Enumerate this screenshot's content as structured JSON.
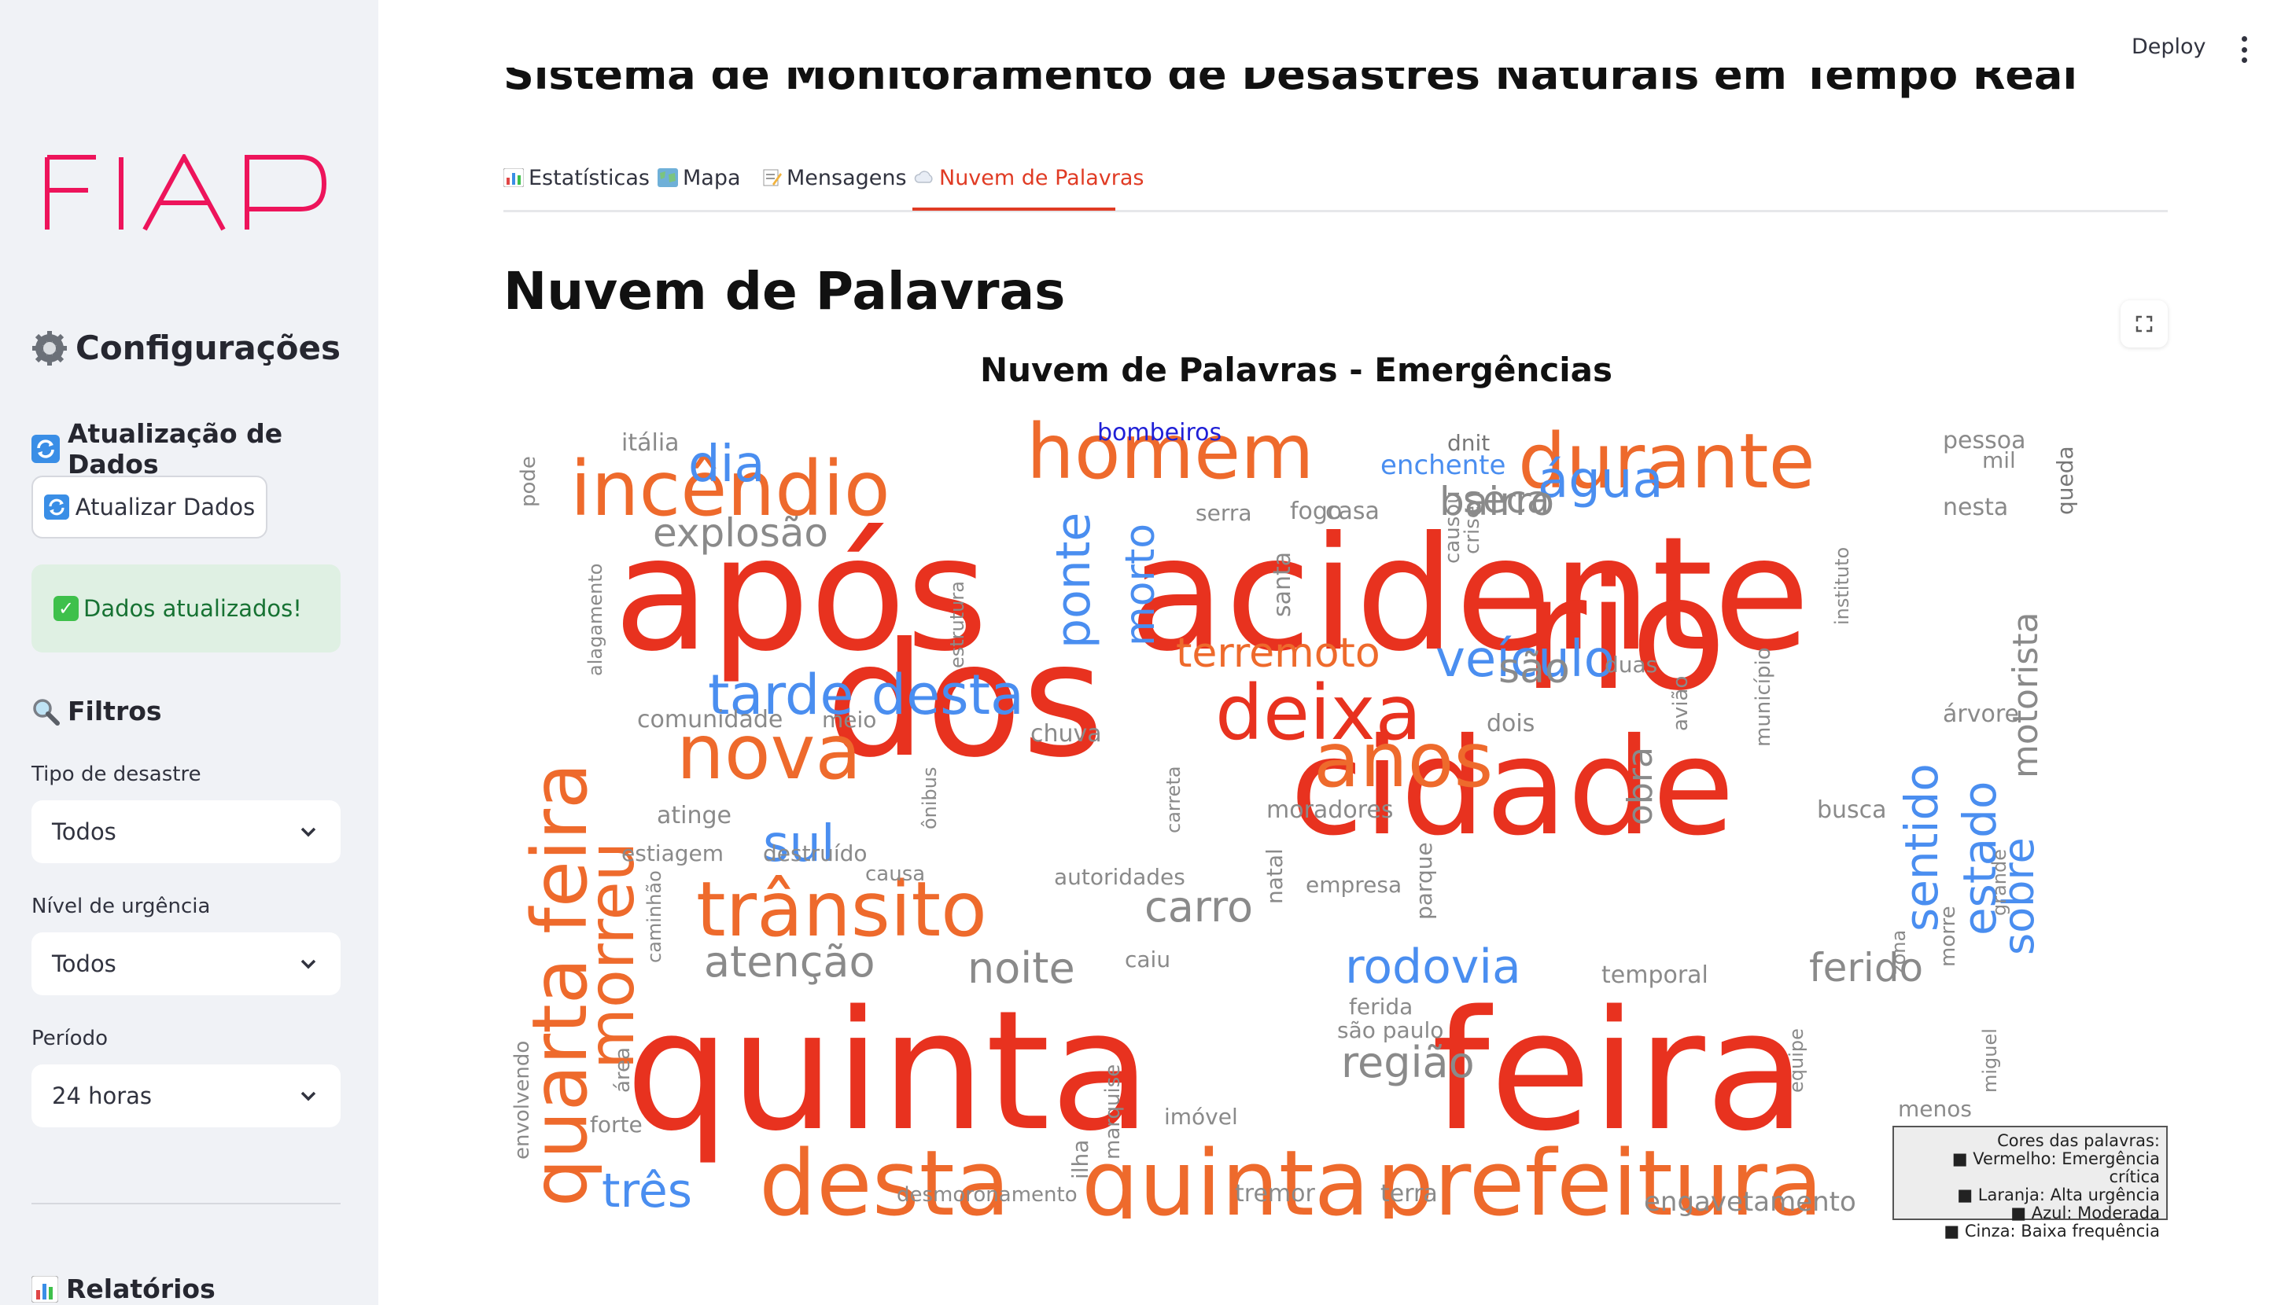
{
  "sidebar": {
    "logo_text": "FIAP",
    "config_title": "Configurações",
    "update_section_title": "Atualização de Dados",
    "update_button_label": "Atualizar Dados",
    "success_message": "Dados atualizados!",
    "filters_title": "Filtros",
    "filters": [
      {
        "label": "Tipo de desastre",
        "value": "Todos"
      },
      {
        "label": "Nível de urgência",
        "value": "Todos"
      },
      {
        "label": "Período",
        "value": "24 horas"
      }
    ],
    "reports_title": "Relatórios"
  },
  "header": {
    "deploy_label": "Deploy"
  },
  "main": {
    "page_title": "Sistema de Monitoramento de Desastres Naturais em Tempo Real",
    "tabs": [
      {
        "label": "Estatísticas",
        "icon": "bar-chart-icon"
      },
      {
        "label": "Mapa",
        "icon": "map-icon"
      },
      {
        "label": "Mensagens",
        "icon": "memo-icon"
      },
      {
        "label": "Nuvem de Palavras",
        "icon": "cloud-icon",
        "active": true
      }
    ],
    "section_title": "Nuvem de Palavras"
  },
  "wordcloud": {
    "title": "Nuvem de Palavras - Emergências",
    "colors": {
      "red": "#e8321f",
      "orange": "#ee6a2c",
      "blue": "#4a8ef0",
      "gray": "#8a8a8a",
      "darkgray": "#777777",
      "navy": "#1f1fd6"
    },
    "words": [
      {
        "text": "quinta",
        "color": "red",
        "size": 210
      },
      {
        "text": "feira",
        "color": "red",
        "size": 210
      },
      {
        "text": "acidente",
        "color": "red",
        "size": 200
      },
      {
        "text": "após",
        "color": "red",
        "size": 200
      },
      {
        "text": "rio",
        "color": "red",
        "size": 200
      },
      {
        "text": "dos",
        "color": "red",
        "size": 200
      },
      {
        "text": "cidade",
        "color": "red",
        "size": 170
      },
      {
        "text": "quinta",
        "color": "orange",
        "size": 115
      },
      {
        "text": "prefeitura",
        "color": "orange",
        "size": 115
      },
      {
        "text": "desta",
        "color": "orange",
        "size": 115
      },
      {
        "text": "incêndio",
        "color": "orange",
        "size": 96
      },
      {
        "text": "homem",
        "color": "orange",
        "size": 96
      },
      {
        "text": "durante",
        "color": "orange",
        "size": 96
      },
      {
        "text": "nova",
        "color": "orange",
        "size": 96
      },
      {
        "text": "deixa",
        "color": "red",
        "size": 96
      },
      {
        "text": "anos",
        "color": "orange",
        "size": 96
      },
      {
        "text": "trânsito",
        "color": "orange",
        "size": 96
      },
      {
        "text": "quarta feira",
        "color": "orange",
        "size": 96
      },
      {
        "text": "morreu",
        "color": "orange",
        "size": 80
      },
      {
        "text": "tarde desta",
        "color": "blue",
        "size": 70
      },
      {
        "text": "dia",
        "color": "blue",
        "size": 64
      },
      {
        "text": "água",
        "color": "blue",
        "size": 64
      },
      {
        "text": "veículo",
        "color": "blue",
        "size": 64
      },
      {
        "text": "rodovia",
        "color": "blue",
        "size": 60
      },
      {
        "text": "sul",
        "color": "blue",
        "size": 64
      },
      {
        "text": "três",
        "color": "blue",
        "size": 60
      },
      {
        "text": "ponte",
        "color": "blue",
        "size": 60
      },
      {
        "text": "morto",
        "color": "blue",
        "size": 52
      },
      {
        "text": "sentido",
        "color": "blue",
        "size": 58
      },
      {
        "text": "estado",
        "color": "blue",
        "size": 58
      },
      {
        "text": "sobre",
        "color": "blue",
        "size": 54
      },
      {
        "text": "explosão",
        "color": "gray",
        "size": 50
      },
      {
        "text": "bairro",
        "color": "gray",
        "size": 50
      },
      {
        "text": "seca",
        "color": "gray",
        "size": 48
      },
      {
        "text": "terremoto",
        "color": "orange",
        "size": 52
      },
      {
        "text": "são",
        "color": "gray",
        "size": 52
      },
      {
        "text": "carro",
        "color": "gray",
        "size": 54
      },
      {
        "text": "atenção",
        "color": "gray",
        "size": 54
      },
      {
        "text": "noite",
        "color": "gray",
        "size": 54
      },
      {
        "text": "região",
        "color": "gray",
        "size": 54
      },
      {
        "text": "ferido",
        "color": "gray",
        "size": 50
      },
      {
        "text": "motorista",
        "color": "gray",
        "size": 44
      },
      {
        "text": "obra",
        "color": "gray",
        "size": 44
      },
      {
        "text": "engavetamento",
        "color": "gray",
        "size": 34
      },
      {
        "text": "bombeiros",
        "color": "navy",
        "size": 30
      },
      {
        "text": "enchente",
        "color": "blue",
        "size": 34
      }
    ],
    "small_words": [
      "itália",
      "dnit",
      "pessoa",
      "mil",
      "pode",
      "serra",
      "casa",
      "nesta",
      "queda",
      "alagamento",
      "estrutura",
      "santa",
      "fogo",
      "causou",
      "crise",
      "instituto",
      "duas",
      "avião",
      "município",
      "comunidade",
      "meio",
      "chuva",
      "dois",
      "árvore",
      "ônibus",
      "carreta",
      "atinge",
      "estiagem",
      "destruído",
      "causa",
      "moradores",
      "autoridades",
      "natal",
      "empresa",
      "parque",
      "busca",
      "zona",
      "morre",
      "grande",
      "caminhão",
      "caiu",
      "ferida",
      "temporal",
      "são paulo",
      "envolvendo",
      "área",
      "marquise",
      "ilha",
      "equipe",
      "miguel",
      "forte",
      "imóvel",
      "menos",
      "desmoronamento",
      "tremor",
      "terra"
    ],
    "legend": {
      "title": "Cores das palavras:",
      "items": [
        "■ Vermelho: Emergência crítica",
        "■ Laranja: Alta urgência",
        "■ Azul: Moderada",
        "■ Cinza: Baixa frequência"
      ]
    }
  }
}
